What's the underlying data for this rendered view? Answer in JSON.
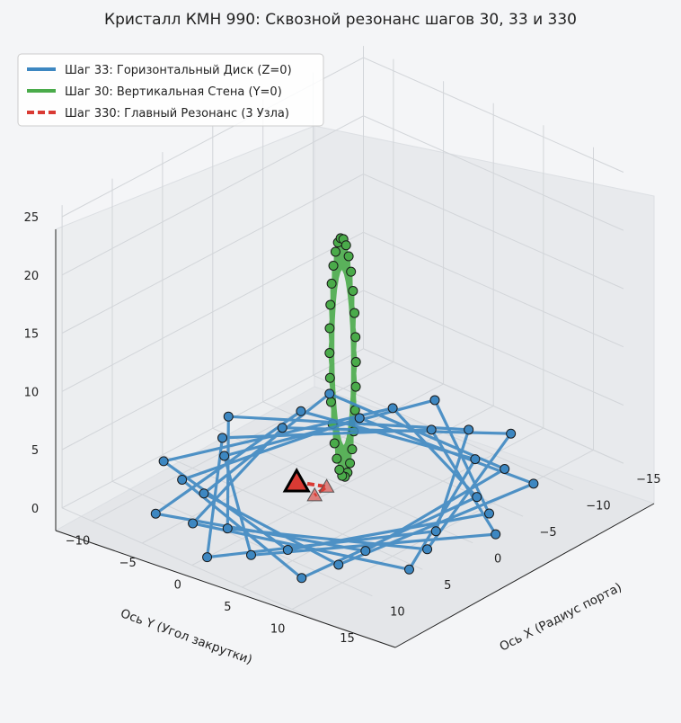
{
  "chart_data": {
    "type": "line3d",
    "title": "Кристалл КМН 990: Сквозной резонанс шагов 30, 33 и 330",
    "xlabel": "Ось X (Радиус порта)",
    "ylabel": "Ось Y (Угол закрутки)",
    "zlabel": "",
    "xticks": [
      "15",
      "10",
      "5",
      "0",
      "−5",
      "−10",
      "−15"
    ],
    "yticks": [
      "−10",
      "−5",
      "0",
      "5",
      "10"
    ],
    "zticks": [
      "0",
      "5",
      "10",
      "15",
      "20",
      "25"
    ],
    "xlim": [
      -15,
      15
    ],
    "ylim": [
      -13,
      13
    ],
    "zlim": [
      0,
      26
    ],
    "legend_position": "top-left",
    "series": [
      {
        "name": "Шаг 33: Горизонтальный Диск (Z=0)",
        "color": "#3d87c1",
        "style": "solid",
        "plane": "Z=0",
        "points": 33,
        "turn_step": 8
      },
      {
        "name": "Шаг 30: Вертикальная Стена (Y=0)",
        "color": "#4aab4a",
        "style": "solid",
        "plane": "Y=0",
        "points": 30,
        "turn_step": 7
      },
      {
        "name": "Шаг 330: Главный Резонанс (3 Узла)",
        "color": "#d93a33",
        "style": "dashed",
        "nodes": 3
      }
    ],
    "grid": true
  }
}
